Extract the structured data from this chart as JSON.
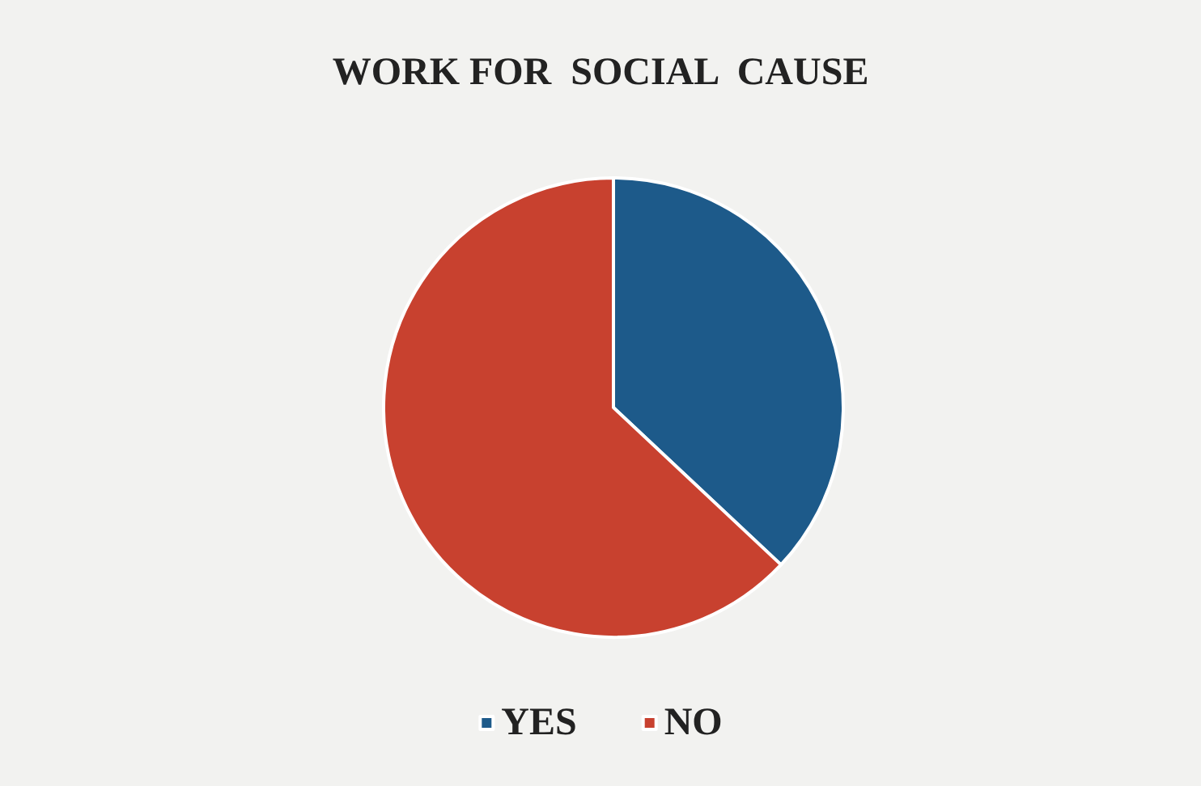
{
  "chart_data": {
    "type": "pie",
    "title": "WORK FOR  SOCIAL  CAUSE",
    "categories": [
      "YES",
      "NO"
    ],
    "values": [
      37,
      63
    ],
    "colors": [
      "#1d5a8a",
      "#c8412f"
    ],
    "legend": "bottom"
  }
}
